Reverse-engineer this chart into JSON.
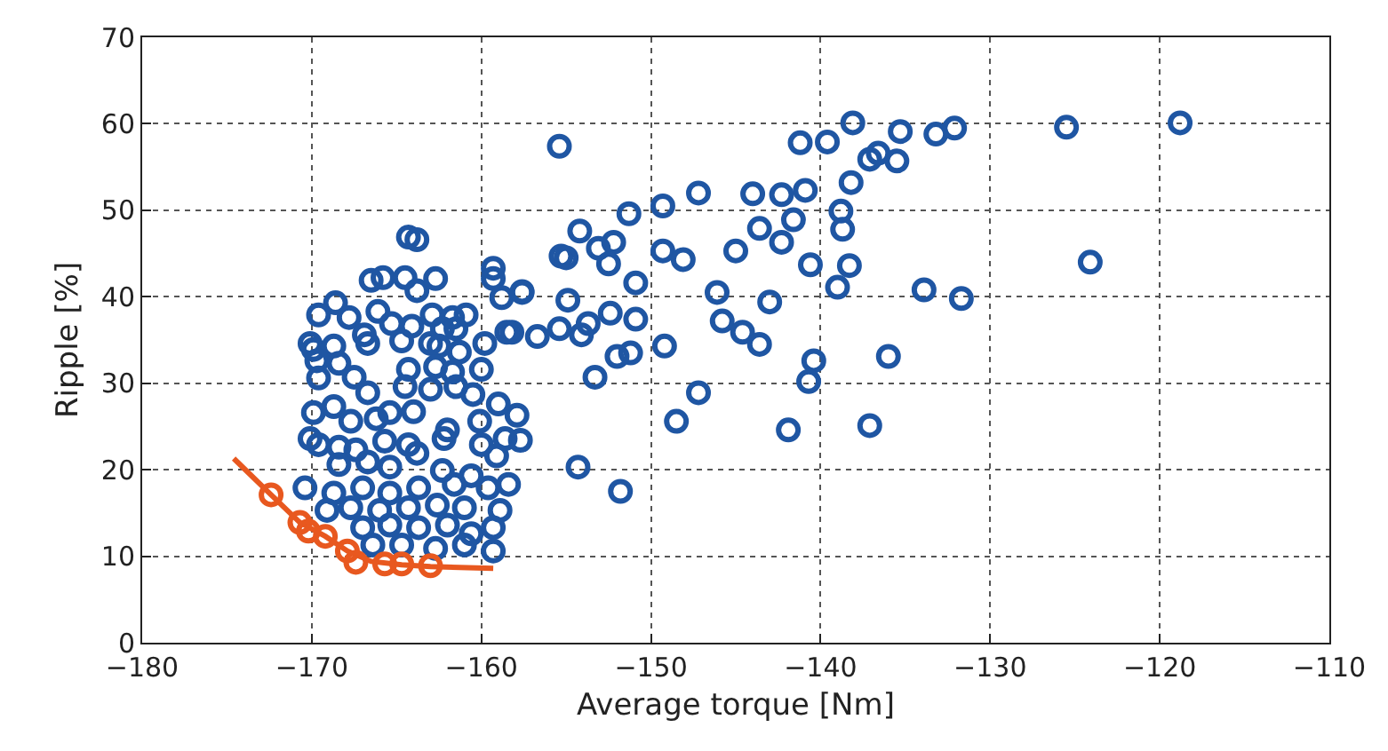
{
  "chart_data": {
    "type": "scatter",
    "xlabel": "Average torque [Nm]",
    "ylabel": "Ripple [%]",
    "xlim": [
      -180,
      -110
    ],
    "xticks": [
      {
        "value": -180,
        "label": "−180"
      },
      {
        "value": -170,
        "label": "−170"
      },
      {
        "value": -160,
        "label": "−160"
      },
      {
        "value": -150,
        "label": "−150"
      },
      {
        "value": -140,
        "label": "−140"
      },
      {
        "value": -130,
        "label": "−130"
      },
      {
        "value": -120,
        "label": "−120"
      },
      {
        "value": -110,
        "label": "−110"
      }
    ],
    "ylim": [
      0,
      70
    ],
    "yticks": [
      0,
      10,
      20,
      30,
      40,
      50,
      60,
      70
    ],
    "grid": true,
    "legend": false,
    "series": [
      {
        "type": "scatter",
        "marker": "circle",
        "color": "#1f56a3",
        "x": [
          -155.4,
          -138.1,
          -141.2,
          -139.6,
          -135.3,
          -133.2,
          -132.1,
          -137.1,
          -136.6,
          -135.5,
          -125.5,
          -118.8,
          -124.1,
          -138.2,
          -144.0,
          -142.3,
          -140.9,
          -147.2,
          -149.3,
          -151.3,
          -154.2,
          -152.2,
          -153.1,
          -152.5,
          -155.3,
          -155.0,
          -149.3,
          -148.1,
          -150.9,
          -145.0,
          -143.6,
          -142.3,
          -141.6,
          -138.8,
          -138.7,
          -140.6,
          -138.3,
          -139.0,
          -133.9,
          -131.7,
          -146.1,
          -143.0,
          -157.6,
          -154.9,
          -152.4,
          -150.9,
          -153.7,
          -154.1,
          -155.4,
          -156.7,
          -158.2,
          -145.8,
          -144.6,
          -143.6,
          -149.2,
          -151.2,
          -152.0,
          -153.3,
          -140.4,
          -140.7,
          -136.0,
          -147.2,
          -148.5,
          -141.9,
          -137.1,
          -154.3,
          -151.8,
          -157.9,
          -157.7,
          -164.3,
          -163.8,
          -166.5,
          -165.8,
          -164.5,
          -163.8,
          -162.7,
          -159.3,
          -159.3,
          -158.8,
          -157.6,
          -168.6,
          -169.6,
          -167.8,
          -166.1,
          -165.3,
          -164.1,
          -162.9,
          -161.7,
          -160.9,
          -162.3,
          -161.5,
          -170.1,
          -169.9,
          -168.7,
          -166.7,
          -166.9,
          -164.7,
          -163.0,
          -162.5,
          -161.3,
          -159.8,
          -158.5,
          -169.7,
          -168.4,
          -164.3,
          -162.7,
          -161.7,
          -160.0,
          -169.6,
          -167.5,
          -164.5,
          -163.0,
          -166.7,
          -161.5,
          -160.5,
          -169.9,
          -168.7,
          -167.7,
          -166.2,
          -165.4,
          -164.0,
          -159.0,
          -160.1,
          -162.0,
          -162.2,
          -170.1,
          -169.6,
          -168.4,
          -167.4,
          -165.7,
          -164.3,
          -163.8,
          -160.0,
          -158.6,
          -159.1,
          -168.4,
          -166.7,
          -165.4,
          -162.3,
          -160.6,
          -170.4,
          -168.7,
          -167.0,
          -165.4,
          -163.7,
          -161.6,
          -159.6,
          -158.4,
          -169.1,
          -167.7,
          -166.0,
          -164.3,
          -162.6,
          -161.0,
          -158.9,
          -167.0,
          -165.4,
          -163.7,
          -162.0,
          -160.6,
          -159.3,
          -166.4,
          -164.7,
          -162.7,
          -161.0,
          -159.3
        ],
        "values": [
          57.4,
          60.1,
          57.8,
          57.9,
          59.1,
          58.8,
          59.5,
          55.9,
          56.6,
          55.7,
          59.6,
          60.1,
          44.0,
          53.2,
          51.9,
          51.8,
          52.3,
          52.0,
          50.5,
          49.6,
          47.6,
          46.3,
          45.6,
          43.8,
          44.7,
          44.5,
          45.3,
          44.3,
          41.6,
          45.3,
          47.9,
          46.3,
          48.9,
          49.9,
          47.8,
          43.7,
          43.6,
          41.1,
          40.8,
          39.8,
          40.5,
          39.4,
          40.5,
          39.6,
          38.1,
          37.4,
          36.9,
          35.6,
          36.3,
          35.4,
          35.9,
          37.2,
          35.9,
          34.5,
          34.3,
          33.5,
          33.1,
          30.7,
          32.6,
          30.2,
          33.1,
          28.9,
          25.6,
          24.6,
          25.1,
          20.3,
          17.5,
          26.3,
          23.4,
          46.9,
          46.6,
          41.9,
          42.2,
          42.2,
          40.7,
          42.1,
          43.3,
          42.1,
          39.9,
          40.6,
          39.3,
          37.9,
          37.6,
          38.3,
          36.9,
          36.6,
          37.9,
          37.6,
          37.9,
          36.3,
          36.3,
          34.6,
          33.9,
          34.3,
          34.6,
          35.6,
          34.9,
          34.6,
          34.3,
          33.6,
          34.6,
          35.9,
          32.6,
          32.3,
          31.6,
          31.9,
          31.3,
          31.6,
          30.6,
          30.7,
          29.6,
          29.3,
          28.9,
          29.6,
          28.7,
          26.6,
          27.3,
          25.6,
          25.9,
          26.6,
          26.7,
          27.6,
          25.6,
          24.6,
          23.6,
          23.6,
          22.9,
          22.6,
          22.3,
          23.3,
          22.9,
          21.9,
          22.9,
          23.6,
          21.6,
          20.6,
          20.9,
          20.3,
          19.9,
          19.3,
          17.9,
          17.3,
          17.9,
          17.3,
          17.9,
          18.3,
          17.9,
          18.3,
          15.3,
          15.6,
          15.3,
          15.6,
          15.9,
          15.6,
          15.3,
          13.3,
          13.6,
          13.3,
          13.6,
          12.6,
          13.3,
          11.3,
          11.3,
          10.9,
          11.3,
          10.6
        ]
      },
      {
        "type": "line",
        "marker": "none",
        "line_style": "solid",
        "color": "#e8581f",
        "x": [
          -174.6,
          -172.4,
          -170.7,
          -169.2,
          -167.9,
          -166.5,
          -164.7,
          -163.0,
          -159.3
        ],
        "values": [
          21.3,
          17.1,
          13.9,
          12.3,
          10.6,
          9.4,
          9.0,
          8.8,
          8.6
        ]
      },
      {
        "type": "scatter",
        "marker": "circle",
        "color": "#e8581f",
        "x": [
          -172.4,
          -170.7,
          -170.2,
          -169.2,
          -167.9,
          -167.4,
          -165.7,
          -164.7,
          -163.0
        ],
        "values": [
          17.1,
          13.9,
          12.9,
          12.3,
          10.6,
          9.3,
          9.1,
          9.1,
          8.9
        ]
      }
    ]
  }
}
